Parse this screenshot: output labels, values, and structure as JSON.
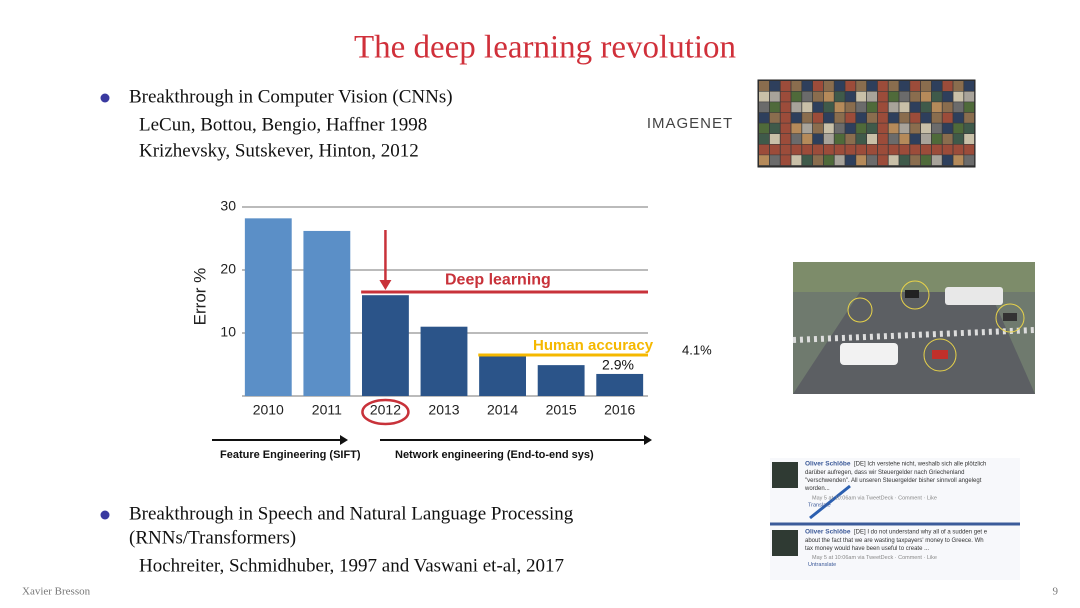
{
  "title": "The deep learning revolution",
  "bullets": [
    {
      "lines": [
        "Breakthrough in Computer Vision (CNNs)"
      ],
      "sub": [
        "LeCun, Bottou, Bengio, Haffner 1998",
        "Krizhevsky, Sutskever, Hinton, 2012"
      ]
    },
    {
      "lines": [
        "Breakthrough in Speech and Natural Language Processing",
        "(RNNs/Transformers)"
      ],
      "sub": [
        "Hochreiter, Schmidhuber, 1997 and Vaswani et-al, 2017"
      ]
    }
  ],
  "logo": "IMAGENET",
  "tweets": [
    {
      "name": "Oliver Schlöbe",
      "lines": [
        "[DE] Ich verstehe nicht, weshalb sich alle plötzlich",
        "darüber aufregen, dass wir Steuergelder nach Griechenland",
        "\"verschwenden\". All unseren Steuergelder bisher sinnvoll angelegt",
        "worden..."
      ],
      "meta": "May 5 at 10:06am via TweetDeck · Comment · Like",
      "action": "Translate"
    },
    {
      "name": "Oliver Schlöbe",
      "lines": [
        "[DE] I do not understand why all of a sudden get e",
        "about the fact that we are wasting taxpayers' money to Greece. Wh",
        "tax money would have been useful to create ..."
      ],
      "meta": "May 5 at 10:06am via TweetDeck · Comment · Like",
      "action": "Untranslate"
    }
  ],
  "footer": {
    "author": "Xavier Bresson",
    "page": "9"
  },
  "chart_data": {
    "type": "bar",
    "ylabel": "Error %",
    "categories": [
      "2010",
      "2011",
      "2012",
      "2013",
      "2014",
      "2015",
      "2016"
    ],
    "values": [
      28.2,
      26.2,
      16,
      11,
      6.7,
      4.9,
      3.5
    ],
    "colors": [
      "#5b8fc7",
      "#5b8fc7",
      "#2b5489",
      "#2b5489",
      "#2b5489",
      "#2b5489",
      "#2b5489"
    ],
    "ylim": [
      0,
      30
    ],
    "yticks": [
      10,
      20,
      30
    ],
    "grid": true,
    "circled_index": 2,
    "annotations": [
      {
        "text": "Deep learning",
        "value": 16.5,
        "color": "#c8323a"
      },
      {
        "text": "Human accuracy",
        "value": 6.5,
        "color": "#f5b800",
        "note": "4.1%"
      },
      {
        "text": "2.9%"
      }
    ],
    "phases": [
      "Feature Engineering (SIFT)",
      "Network engineering (End-to-end sys)"
    ]
  }
}
